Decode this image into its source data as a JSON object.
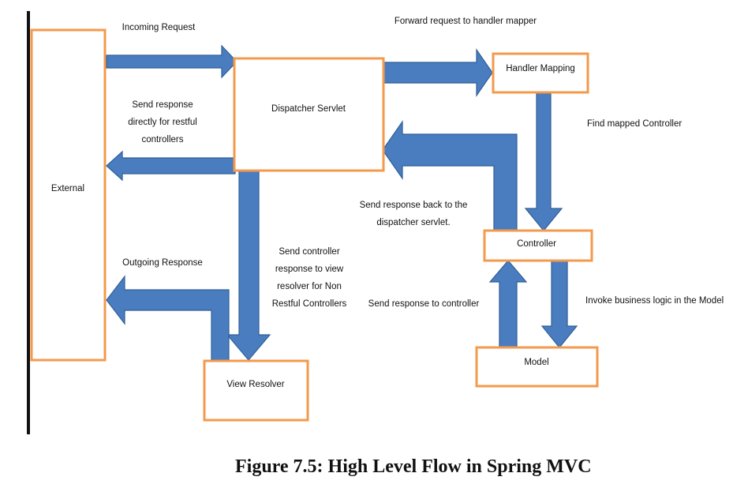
{
  "nodes": {
    "external": "External",
    "dispatcher": "Dispatcher Servlet",
    "handler_mapping": "Handler Mapping",
    "controller": "Controller",
    "model": "Model",
    "view_resolver": "View Resolver"
  },
  "edge_labels": {
    "incoming_request": "Incoming Request",
    "forward_request": "Forward request to handler mapper",
    "send_response_direct": [
      "Send response",
      "directly for restful",
      "controllers"
    ],
    "find_mapped_controller": "Find mapped Controller",
    "send_back_dispatcher": [
      "Send response back to the",
      "dispatcher servlet."
    ],
    "send_to_view_resolver": [
      "Send controller",
      "response to view",
      "resolver for Non",
      "Restful Controllers"
    ],
    "outgoing_response": "Outgoing Response",
    "send_to_controller": "Send response to controller",
    "invoke_business_logic": "Invoke business logic in the Model"
  },
  "caption": "Figure 7.5: High Level Flow in Spring MVC",
  "colors": {
    "box_border": "#f39a4c",
    "arrow_fill": "#4a7dc0",
    "arrow_stroke": "#2f5f98"
  }
}
